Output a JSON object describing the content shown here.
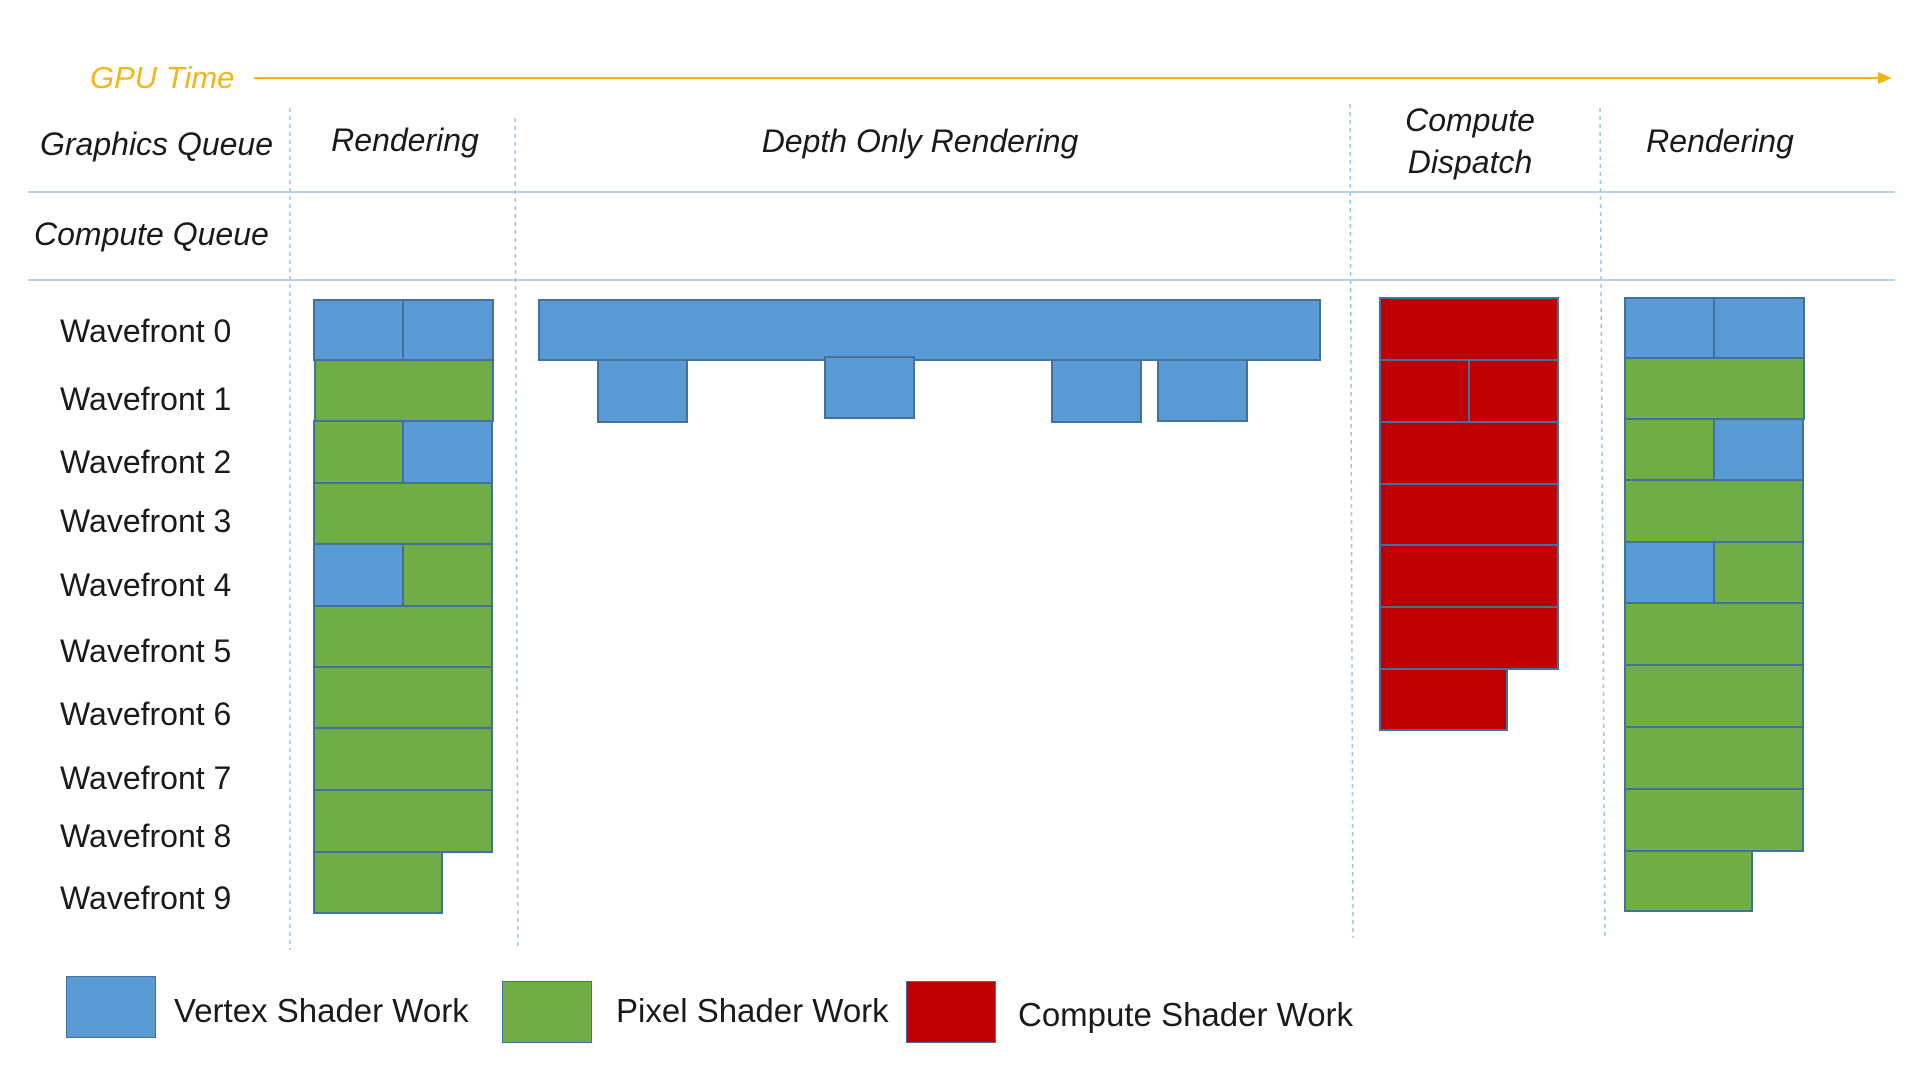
{
  "gpu_time_label": "GPU Time",
  "rows": {
    "graphics_queue": "Graphics Queue",
    "compute_queue": "Compute Queue"
  },
  "phases": [
    {
      "label": "Rendering"
    },
    {
      "label": "Depth Only Rendering"
    },
    {
      "label": "Compute\nDispatch"
    },
    {
      "label": "Rendering"
    }
  ],
  "wavefronts": [
    "Wavefront 0",
    "Wavefront 1",
    "Wavefront 2",
    "Wavefront 3",
    "Wavefront 4",
    "Wavefront 5",
    "Wavefront 6",
    "Wavefront 7",
    "Wavefront 8",
    "Wavefront 9"
  ],
  "legend": [
    {
      "key": "vertex",
      "label": "Vertex Shader Work",
      "color": "#5b9bd5"
    },
    {
      "key": "pixel",
      "label": "Pixel Shader Work",
      "color": "#70ad47"
    },
    {
      "key": "compute",
      "label": "Compute Shader Work",
      "color": "#c00000"
    }
  ],
  "colors": {
    "axis_arrow": "#f2b619",
    "separator_line": "#9dc3e6",
    "block_border": "#41719c"
  }
}
